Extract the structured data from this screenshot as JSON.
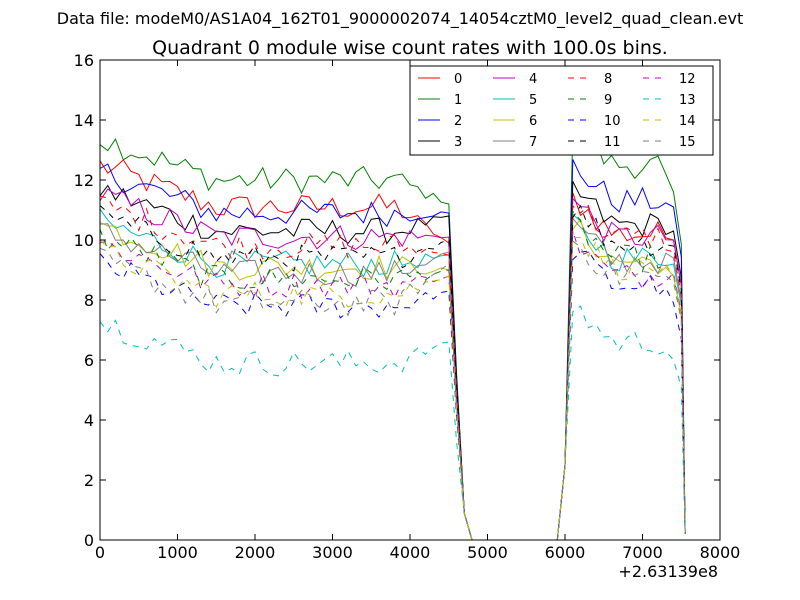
{
  "chart_data": {
    "type": "line",
    "supertitle": "Data file: modeM0/AS1A04_162T01_9000002074_14054cztM0_level2_quad_clean.evt",
    "title": "Quadrant 0 module wise count rates with 100.0s bins.",
    "x_offset_label": "+2.63139e8",
    "xlim": [
      0,
      8000
    ],
    "ylim": [
      0,
      16
    ],
    "xticks": [
      0,
      1000,
      2000,
      3000,
      4000,
      5000,
      6000,
      7000,
      8000
    ],
    "yticks": [
      0,
      2,
      4,
      6,
      8,
      10,
      12,
      14,
      16
    ],
    "grid": false,
    "legend_position": "top-right",
    "segments": [
      {
        "x_start": 0,
        "x_end": 4500,
        "step": 100
      },
      {
        "x_start": 6100,
        "x_end": 7400,
        "step": 100
      }
    ],
    "series": [
      {
        "name": "0",
        "color": "#ff0000",
        "dashed": false,
        "level1": 11.5,
        "level2": 10.5,
        "end1": 9.9,
        "end2": 10.0
      },
      {
        "name": "1",
        "color": "#008000",
        "dashed": false,
        "level1": 12.4,
        "level2": 12.8,
        "end1": 11.2,
        "end2": 11.6
      },
      {
        "name": "2",
        "color": "#0000ff",
        "dashed": false,
        "level1": 11.3,
        "level2": 11.6,
        "end1": 10.9,
        "end2": 11.1
      },
      {
        "name": "3",
        "color": "#000000",
        "dashed": false,
        "level1": 10.7,
        "level2": 10.8,
        "end1": 10.8,
        "end2": 10.3
      },
      {
        "name": "4",
        "color": "#bf00bf",
        "dashed": false,
        "level1": 10.5,
        "level2": 10.4,
        "end1": 10.1,
        "end2": 10.0
      },
      {
        "name": "5",
        "color": "#00bfbf",
        "dashed": false,
        "level1": 9.6,
        "level2": 9.7,
        "end1": 9.5,
        "end2": 9.2
      },
      {
        "name": "6",
        "color": "#bfbf00",
        "dashed": false,
        "level1": 9.5,
        "level2": 9.6,
        "end1": 9.0,
        "end2": 8.8
      },
      {
        "name": "7",
        "color": "#808080",
        "dashed": false,
        "level1": 9.3,
        "level2": 9.6,
        "end1": 9.6,
        "end2": 9.4
      },
      {
        "name": "8",
        "color": "#ff0000",
        "dashed": true,
        "level1": 10.2,
        "level2": 10.4,
        "end1": 9.5,
        "end2": 9.6
      },
      {
        "name": "9",
        "color": "#008000",
        "dashed": true,
        "level1": 9.1,
        "level2": 9.7,
        "end1": 9.0,
        "end2": 8.8
      },
      {
        "name": "10",
        "color": "#0000ff",
        "dashed": true,
        "level1": 8.2,
        "level2": 8.8,
        "end1": 8.3,
        "end2": 7.9
      },
      {
        "name": "11",
        "color": "#000000",
        "dashed": true,
        "level1": 9.8,
        "level2": 10.2,
        "end1": 10.0,
        "end2": 9.8
      },
      {
        "name": "12",
        "color": "#bf00bf",
        "dashed": true,
        "level1": 8.9,
        "level2": 9.1,
        "end1": 8.8,
        "end2": 8.9
      },
      {
        "name": "13",
        "color": "#00bfbf",
        "dashed": true,
        "level1": 6.3,
        "level2": 6.9,
        "end1": 6.6,
        "end2": 6.0
      },
      {
        "name": "14",
        "color": "#bfbf00",
        "dashed": true,
        "level1": 8.6,
        "level2": 9.4,
        "end1": 8.8,
        "end2": 8.8
      },
      {
        "name": "15",
        "color": "#808080",
        "dashed": true,
        "level1": 8.3,
        "level2": 9.1,
        "end1": 9.2,
        "end2": 8.6
      }
    ]
  }
}
